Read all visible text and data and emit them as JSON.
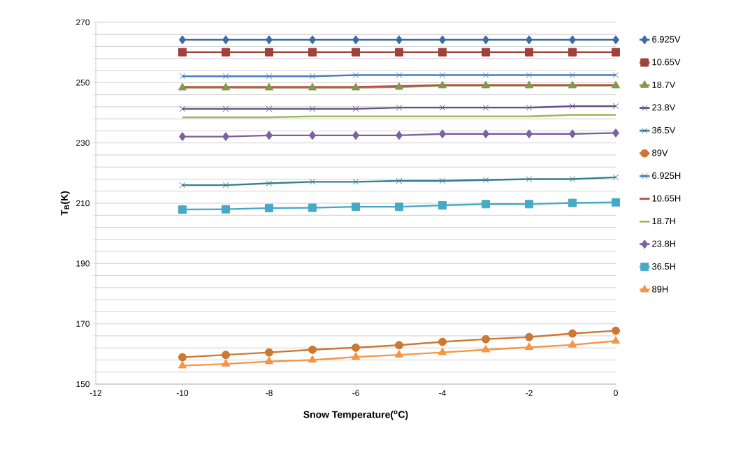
{
  "chart_data": {
    "type": "line",
    "xlabel": "Snow Temperature($^{o}$C)",
    "ylabel": "T$_{B}$(K)",
    "x": [
      -10,
      -9,
      -8,
      -7,
      -6,
      -5,
      -4,
      -3,
      -2,
      -1,
      0
    ],
    "xlim": [
      -12,
      0
    ],
    "xticks": [
      -12,
      -10,
      -8,
      -6,
      -4,
      -2,
      0
    ],
    "ylim": [
      150,
      270
    ],
    "yticks": [
      150,
      {
        "value": 154,
        "label": null
      },
      {
        "value": 158,
        "label": null
      },
      {
        "value": 162,
        "label": null
      },
      {
        "value": 166,
        "label": null
      },
      170,
      {
        "value": 174,
        "label": null
      },
      {
        "value": 178,
        "label": null
      },
      {
        "value": 182,
        "label": null
      },
      {
        "value": 186,
        "label": null
      },
      190,
      {
        "value": 194,
        "label": null
      },
      {
        "value": 198,
        "label": null
      },
      {
        "value": 202,
        "label": null
      },
      {
        "value": 206,
        "label": null
      },
      210,
      {
        "value": 214,
        "label": null
      },
      {
        "value": 218,
        "label": null
      },
      {
        "value": 222,
        "label": null
      },
      {
        "value": 226,
        "label": null
      },
      230,
      {
        "value": 234,
        "label": null
      },
      {
        "value": 238,
        "label": null
      },
      {
        "value": 242,
        "label": null
      },
      {
        "value": 246,
        "label": null
      },
      250,
      {
        "value": 254,
        "label": null
      },
      {
        "value": 258,
        "label": null
      },
      {
        "value": 262,
        "label": null
      },
      {
        "value": 266,
        "label": null
      },
      270
    ],
    "grid": "y",
    "legend": "right",
    "line_style": "solid",
    "series": [
      {
        "name": "6.925V",
        "color": "#3d6ca3",
        "marker": "diamond",
        "values": [
          264.2,
          264.2,
          264.2,
          264.2,
          264.2,
          264.2,
          264.2,
          264.2,
          264.2,
          264.2,
          264.2
        ]
      },
      {
        "name": "10.65V",
        "color": "#a0413c",
        "marker": "square",
        "values": [
          260.1,
          260.1,
          260.1,
          260.1,
          260.1,
          260.1,
          260.1,
          260.1,
          260.1,
          260.1,
          260.1
        ]
      },
      {
        "name": "18.7V",
        "color": "#7f9a48",
        "marker": "triangle",
        "values": [
          248.3,
          248.3,
          248.3,
          248.3,
          248.3,
          248.5,
          249.0,
          249.0,
          249.0,
          249.0,
          249.0
        ]
      },
      {
        "name": "23.8V",
        "color": "#68518b",
        "marker": "cross",
        "values": [
          241.3,
          241.3,
          241.3,
          241.3,
          241.3,
          241.7,
          241.7,
          241.7,
          241.7,
          242.2,
          242.2
        ]
      },
      {
        "name": "36.5V",
        "color": "#357d91",
        "marker": "cross",
        "values": [
          216.0,
          216.0,
          216.6,
          217.1,
          217.1,
          217.4,
          217.4,
          217.7,
          218.0,
          218.0,
          218.6
        ]
      },
      {
        "name": "89V",
        "color": "#cc7832",
        "marker": "circle",
        "values": [
          158.9,
          159.7,
          160.5,
          161.4,
          162.1,
          162.9,
          164.0,
          164.9,
          165.6,
          166.8,
          167.7
        ]
      },
      {
        "name": "6.925H",
        "color": "#4a7ebb",
        "marker": "cross",
        "values": [
          252.1,
          252.1,
          252.1,
          252.1,
          252.5,
          252.5,
          252.5,
          252.5,
          252.5,
          252.5,
          252.5
        ]
      },
      {
        "name": "10.65H",
        "color": "#be4b48",
        "marker": "none",
        "values": [
          248.6,
          248.6,
          248.6,
          248.6,
          248.6,
          248.9,
          249.2,
          249.2,
          249.2,
          249.2,
          249.2
        ]
      },
      {
        "name": "18.7H",
        "color": "#98b954",
        "marker": "none",
        "values": [
          238.5,
          238.5,
          238.5,
          238.8,
          238.8,
          238.8,
          238.8,
          238.8,
          238.8,
          239.3,
          239.3
        ]
      },
      {
        "name": "23.8H",
        "color": "#7d60a0",
        "marker": "diamond",
        "values": [
          232.1,
          232.1,
          232.5,
          232.5,
          232.5,
          232.5,
          233.0,
          233.0,
          233.0,
          233.0,
          233.3
        ]
      },
      {
        "name": "36.5H",
        "color": "#46aac5",
        "marker": "square",
        "values": [
          207.9,
          208.0,
          208.4,
          208.5,
          208.8,
          208.8,
          209.3,
          209.7,
          209.7,
          210.1,
          210.3
        ]
      },
      {
        "name": "89H",
        "color": "#f69546",
        "marker": "triangle",
        "values": [
          156.1,
          156.7,
          157.5,
          158.0,
          159.0,
          159.7,
          160.5,
          161.4,
          162.2,
          163.0,
          164.3
        ]
      }
    ]
  }
}
